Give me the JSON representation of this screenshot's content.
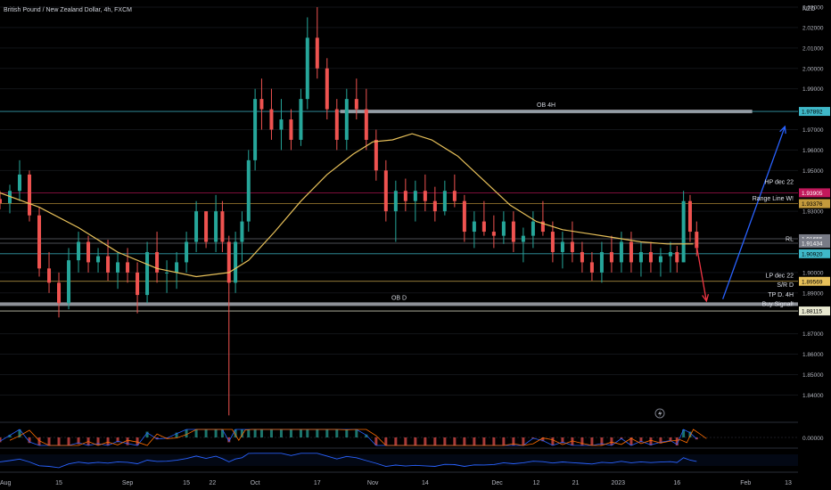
{
  "header": {
    "title": "British Pound / New Zealand Dollar, 4h, FXCM",
    "currency": "NZD"
  },
  "colors": {
    "up": "#26a69a",
    "down": "#ef5350",
    "ma": "#e8c15a",
    "cyan": "#3fb8c8",
    "arrow_blue": "#2962ff",
    "arrow_red": "#f23645",
    "zone": "#b2b5be",
    "macd": "#2962ff",
    "signal": "#ff6d00",
    "rsi": "#2962ff"
  },
  "axis": {
    "x_ticks": [
      {
        "label": "Aug",
        "t": 0.0
      },
      {
        "label": "15",
        "t": 9.0
      },
      {
        "label": "Sep",
        "t": 19.5
      },
      {
        "label": "15",
        "t": 28.5
      },
      {
        "label": "22",
        "t": 32.5
      },
      {
        "label": "Oct",
        "t": 39.0
      },
      {
        "label": "17",
        "t": 48.5
      },
      {
        "label": "Nov",
        "t": 57.0
      },
      {
        "label": "14",
        "t": 65.0
      },
      {
        "label": "Dec",
        "t": 76.0
      },
      {
        "label": "12",
        "t": 82.0
      },
      {
        "label": "21",
        "t": 88.0
      },
      {
        "label": "2023",
        "t": 94.5
      },
      {
        "label": "16",
        "t": 103.5
      },
      {
        "label": "Feb",
        "t": 114.0
      },
      {
        "label": "13",
        "t": 120.5
      }
    ],
    "y_ticks": [
      2.03,
      2.02,
      2.01,
      2.0,
      1.99,
      1.97,
      1.96,
      1.95,
      1.93,
      1.9,
      1.89,
      1.87,
      1.86,
      1.85,
      1.84
    ],
    "ylim": [
      1.8275,
      2.0335
    ],
    "osc_tick": "0.00000"
  },
  "chart_data": {
    "type": "candlestick",
    "title": "British Pound / New Zealand Dollar, 4h, FXCM",
    "x_unit": "approximate trading days since 1 Aug 2022",
    "ohlc_sampled": [
      [
        0,
        1.936,
        1.94,
        1.931,
        1.934
      ],
      [
        1.5,
        1.934,
        1.943,
        1.929,
        1.94
      ],
      [
        3,
        1.94,
        1.955,
        1.935,
        1.948
      ],
      [
        4.5,
        1.948,
        1.95,
        1.925,
        1.928
      ],
      [
        6,
        1.928,
        1.932,
        1.898,
        1.902
      ],
      [
        7.5,
        1.902,
        1.91,
        1.89,
        1.895
      ],
      [
        9,
        1.895,
        1.9,
        1.878,
        1.885
      ],
      [
        10.5,
        1.885,
        1.912,
        1.882,
        1.906
      ],
      [
        12,
        1.906,
        1.92,
        1.9,
        1.915
      ],
      [
        13.5,
        1.915,
        1.918,
        1.9,
        1.905
      ],
      [
        15,
        1.905,
        1.912,
        1.9,
        1.908
      ],
      [
        16.5,
        1.908,
        1.916,
        1.896,
        1.9
      ],
      [
        18,
        1.9,
        1.91,
        1.892,
        1.905
      ],
      [
        19.5,
        1.905,
        1.912,
        1.895,
        1.9
      ],
      [
        21,
        1.9,
        1.905,
        1.88,
        1.889
      ],
      [
        22.5,
        1.889,
        1.915,
        1.885,
        1.91
      ],
      [
        24,
        1.91,
        1.92,
        1.895,
        1.9
      ],
      [
        25.5,
        1.9,
        1.906,
        1.89,
        1.9
      ],
      [
        27,
        1.9,
        1.91,
        1.892,
        1.905
      ],
      [
        28.5,
        1.905,
        1.92,
        1.9,
        1.915
      ],
      [
        30,
        1.915,
        1.935,
        1.91,
        1.93
      ],
      [
        31.5,
        1.93,
        1.93,
        1.912,
        1.915
      ],
      [
        33,
        1.915,
        1.938,
        1.91,
        1.93
      ],
      [
        34,
        1.93,
        1.935,
        1.91,
        1.915
      ],
      [
        35,
        1.915,
        1.918,
        1.83,
        1.895
      ],
      [
        36,
        1.895,
        1.92,
        1.89,
        1.915
      ],
      [
        37,
        1.915,
        1.93,
        1.905,
        1.925
      ],
      [
        38,
        1.925,
        1.96,
        1.92,
        1.955
      ],
      [
        39,
        1.955,
        1.99,
        1.95,
        1.985
      ],
      [
        40,
        1.985,
        1.995,
        1.97,
        1.98
      ],
      [
        41.5,
        1.98,
        1.99,
        1.965,
        1.97
      ],
      [
        43,
        1.97,
        1.985,
        1.96,
        1.975
      ],
      [
        44.5,
        1.975,
        1.98,
        1.96,
        1.965
      ],
      [
        46,
        1.965,
        1.99,
        1.962,
        1.985
      ],
      [
        47,
        1.985,
        2.025,
        1.98,
        2.015
      ],
      [
        48.5,
        2.015,
        2.03,
        1.995,
        2.0
      ],
      [
        50,
        2.0,
        2.005,
        1.975,
        1.98
      ],
      [
        51.5,
        1.98,
        1.985,
        1.96,
        1.965
      ],
      [
        53,
        1.965,
        1.99,
        1.96,
        1.985
      ],
      [
        54.5,
        1.985,
        1.995,
        1.975,
        1.98
      ],
      [
        56,
        1.98,
        1.99,
        1.96,
        1.965
      ],
      [
        57.5,
        1.965,
        1.97,
        1.945,
        1.95
      ],
      [
        59,
        1.95,
        1.955,
        1.925,
        1.93
      ],
      [
        60.5,
        1.93,
        1.945,
        1.915,
        1.94
      ],
      [
        62,
        1.94,
        1.946,
        1.93,
        1.935
      ],
      [
        63.5,
        1.935,
        1.945,
        1.925,
        1.94
      ],
      [
        65,
        1.94,
        1.948,
        1.93,
        1.935
      ],
      [
        66.5,
        1.935,
        1.942,
        1.925,
        1.93
      ],
      [
        68,
        1.93,
        1.945,
        1.928,
        1.94
      ],
      [
        69.5,
        1.94,
        1.948,
        1.932,
        1.935
      ],
      [
        71,
        1.935,
        1.938,
        1.915,
        1.92
      ],
      [
        72.5,
        1.92,
        1.93,
        1.912,
        1.925
      ],
      [
        74,
        1.925,
        1.935,
        1.918,
        1.92
      ],
      [
        75.5,
        1.92,
        1.928,
        1.912,
        1.918
      ],
      [
        77,
        1.918,
        1.93,
        1.914,
        1.925
      ],
      [
        78.5,
        1.925,
        1.93,
        1.91,
        1.915
      ],
      [
        80,
        1.915,
        1.922,
        1.905,
        1.918
      ],
      [
        81.5,
        1.918,
        1.93,
        1.912,
        1.925
      ],
      [
        83,
        1.925,
        1.935,
        1.918,
        1.92
      ],
      [
        84.5,
        1.92,
        1.925,
        1.905,
        1.91
      ],
      [
        86,
        1.91,
        1.92,
        1.902,
        1.915
      ],
      [
        87.5,
        1.915,
        1.925,
        1.905,
        1.91
      ],
      [
        89,
        1.91,
        1.915,
        1.9,
        1.905
      ],
      [
        90.5,
        1.905,
        1.91,
        1.896,
        1.9
      ],
      [
        92,
        1.9,
        1.915,
        1.895,
        1.91
      ],
      [
        93.5,
        1.91,
        1.918,
        1.9,
        1.905
      ],
      [
        95,
        1.905,
        1.92,
        1.9,
        1.915
      ],
      [
        96.5,
        1.915,
        1.92,
        1.9,
        1.905
      ],
      [
        98,
        1.905,
        1.915,
        1.898,
        1.91
      ],
      [
        99.5,
        1.91,
        1.915,
        1.9,
        1.905
      ],
      [
        101,
        1.905,
        1.912,
        1.898,
        1.908
      ],
      [
        102.5,
        1.908,
        1.915,
        1.9,
        1.91
      ],
      [
        103.5,
        1.91,
        1.913,
        1.9,
        1.905
      ],
      [
        104.5,
        1.905,
        1.94,
        1.905,
        1.935
      ],
      [
        105.5,
        1.935,
        1.938,
        1.915,
        1.92
      ],
      [
        106.5,
        1.92,
        1.925,
        1.908,
        1.912
      ]
    ],
    "moving_average": [
      [
        0,
        1.939
      ],
      [
        6,
        1.932
      ],
      [
        12,
        1.922
      ],
      [
        18,
        1.91
      ],
      [
        24,
        1.902
      ],
      [
        30,
        1.898
      ],
      [
        35,
        1.9
      ],
      [
        38,
        1.906
      ],
      [
        42,
        1.92
      ],
      [
        46,
        1.935
      ],
      [
        50,
        1.948
      ],
      [
        54,
        1.958
      ],
      [
        57,
        1.964
      ],
      [
        60,
        1.965
      ],
      [
        63,
        1.968
      ],
      [
        66,
        1.965
      ],
      [
        70,
        1.957
      ],
      [
        74,
        1.945
      ],
      [
        78,
        1.933
      ],
      [
        82,
        1.925
      ],
      [
        86,
        1.921
      ],
      [
        90,
        1.919
      ],
      [
        94,
        1.917
      ],
      [
        98,
        1.915
      ],
      [
        102,
        1.914
      ],
      [
        106,
        1.914
      ]
    ],
    "levels": [
      {
        "label": "1.97892",
        "value": 1.97892,
        "color": "#3fb8c8",
        "t_start": 0
      },
      {
        "label": "1.93905",
        "value": 1.93905,
        "color": "#c2185b",
        "t_start": 0,
        "name": "HP dec 22"
      },
      {
        "label": "1.93376",
        "value": 1.93376,
        "color": "#c49a3c",
        "t_start": 0,
        "name": "Range Line W!"
      },
      {
        "label": "1.91655",
        "value": 1.91655,
        "color": "#787b86",
        "t_start": 0,
        "name": "RL"
      },
      {
        "label": "1.91434",
        "value": 1.91434,
        "color": "#787b86",
        "t_start": 0
      },
      {
        "label": "1.90920",
        "value": 1.9092,
        "color": "#3fb8c8",
        "t_start": 0
      },
      {
        "label": "1.89569",
        "value": 1.89569,
        "color": "#e8c15a",
        "t_start": 0,
        "name": "LP dec 22"
      },
      {
        "label": "1.88115",
        "value": 1.88115,
        "color": "#e8e8d0",
        "t_start": 0
      }
    ],
    "zones": [
      {
        "label": "OB 4H",
        "t_start": 52,
        "t_end": 115,
        "value": 1.9789
      },
      {
        "label": "OB D",
        "t_start": 0,
        "t_end": 122,
        "value": 1.8845
      }
    ],
    "annotations": [
      "HP dec 22",
      "Range Line W!",
      "RL",
      "LP dec 22",
      "S/R D",
      "TP D. 4H",
      "Buy Signal!"
    ],
    "arrows": [
      {
        "color": "#f23645",
        "from": [
          106.5,
          1.913
        ],
        "to": [
          108,
          1.886
        ]
      },
      {
        "color": "#2962ff",
        "from": [
          110.5,
          1.887
        ],
        "to": [
          120,
          1.9715
        ]
      }
    ],
    "oscillator_ylim": [
      -1,
      1
    ],
    "rsi_ylim": [
      0,
      100
    ]
  }
}
